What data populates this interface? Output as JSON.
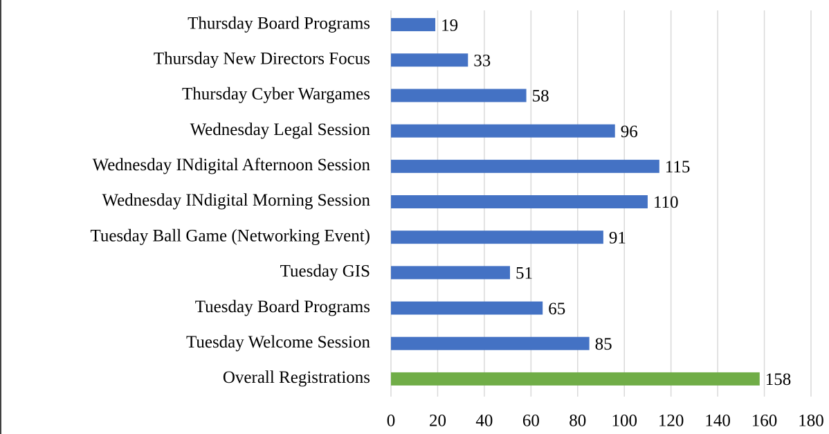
{
  "chart_data": {
    "type": "bar",
    "orientation": "horizontal",
    "categories": [
      "Thursday Board Programs",
      "Thursday New Directors Focus",
      "Thursday Cyber Wargames",
      "Wednesday Legal Session",
      "Wednesday INdigital Afternoon Session",
      "Wednesday INdigital Morning Session",
      "Tuesday Ball Game (Networking Event)",
      "Tuesday GIS",
      "Tuesday Board Programs",
      "Tuesday Welcome Session",
      "Overall Registrations"
    ],
    "values": [
      19,
      33,
      58,
      96,
      115,
      110,
      91,
      51,
      65,
      85,
      158
    ],
    "colors": [
      "#4472c4",
      "#4472c4",
      "#4472c4",
      "#4472c4",
      "#4472c4",
      "#4472c4",
      "#4472c4",
      "#4472c4",
      "#4472c4",
      "#4472c4",
      "#70ad47"
    ],
    "xlim": [
      0,
      180
    ],
    "xticks": [
      0,
      20,
      40,
      60,
      80,
      100,
      120,
      140,
      160,
      180
    ],
    "grid": true
  }
}
